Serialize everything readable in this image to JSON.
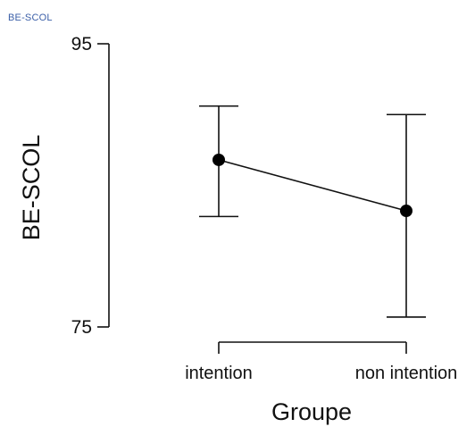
{
  "header": {
    "label": "BE-SCOL"
  },
  "chart_data": {
    "type": "line",
    "title": "",
    "xlabel": "Groupe",
    "ylabel": "BE-SCOL",
    "categories": [
      "intention",
      "non intention"
    ],
    "series": [
      {
        "values": [
          86.8,
          83.2
        ],
        "ci_upper": [
          90.6,
          90.0
        ],
        "ci_lower": [
          82.8,
          75.7
        ]
      }
    ],
    "ylim": [
      75,
      95
    ],
    "yticks": [
      75,
      95
    ],
    "grid": false,
    "legend": "none",
    "colors": {
      "line": "#111111",
      "marker": "#000000",
      "errorbar": "#111111",
      "axis": "#111111",
      "label": "#3b5fa8"
    }
  }
}
